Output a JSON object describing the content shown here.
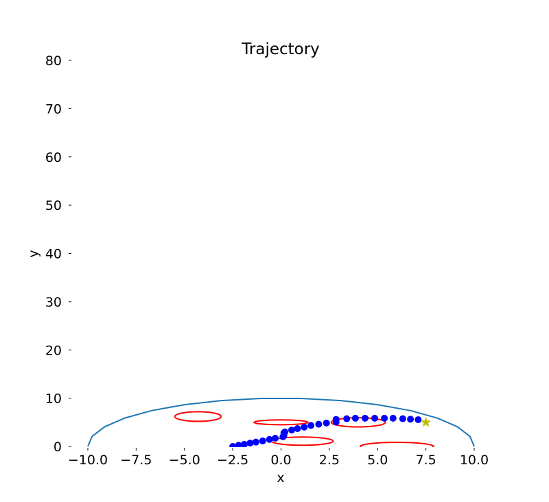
{
  "chart_data": {
    "type": "scatter",
    "title": "Trajectory",
    "xlabel": "x",
    "ylabel": "y",
    "xlim": [
      -10,
      10
    ],
    "ylim": [
      0,
      80
    ],
    "x_ticks": [
      "−10.0",
      "−7.5",
      "−5.0",
      "−2.5",
      "0.0",
      "2.5",
      "5.0",
      "7.5",
      "10.0"
    ],
    "y_ticks": [
      "0",
      "10",
      "20",
      "30",
      "40",
      "50",
      "60",
      "70",
      "80"
    ],
    "x_tick_values": [
      -10,
      -7.5,
      -5,
      -2.5,
      0,
      2.5,
      5,
      7.5,
      10
    ],
    "y_tick_values": [
      0,
      10,
      20,
      30,
      40,
      50,
      60,
      70,
      80
    ],
    "grid": false,
    "boundary": {
      "color": "#1f77b4",
      "radius": 10
    },
    "trajectory": {
      "color": "#0000ff",
      "points": [
        [
          -2.5,
          0.0
        ],
        [
          -2.2,
          0.25
        ],
        [
          -1.9,
          0.45
        ],
        [
          -1.6,
          0.7
        ],
        [
          -1.3,
          0.9
        ],
        [
          -0.95,
          1.15
        ],
        [
          -0.6,
          1.45
        ],
        [
          -0.3,
          1.7
        ],
        [
          0.1,
          2.0
        ],
        [
          0.15,
          2.3
        ],
        [
          0.15,
          2.8
        ],
        [
          0.2,
          3.0
        ],
        [
          0.55,
          3.4
        ],
        [
          0.85,
          3.7
        ],
        [
          1.2,
          4.0
        ],
        [
          1.55,
          4.35
        ],
        [
          1.95,
          4.6
        ],
        [
          2.35,
          4.85
        ],
        [
          2.85,
          5.05
        ],
        [
          2.85,
          5.6
        ],
        [
          3.4,
          5.75
        ],
        [
          3.85,
          5.85
        ],
        [
          4.35,
          5.85
        ],
        [
          4.85,
          5.85
        ],
        [
          5.35,
          5.85
        ],
        [
          5.8,
          5.85
        ],
        [
          6.3,
          5.75
        ],
        [
          6.7,
          5.65
        ],
        [
          7.1,
          5.55
        ]
      ]
    },
    "goal": {
      "x": 7.5,
      "y": 5.0,
      "color": "#bfbf00"
    },
    "obstacles": {
      "color": "#ff0000",
      "ellipses": [
        {
          "cx": -4.3,
          "cy": 6.2,
          "rx": 1.2,
          "ry": 1.0
        },
        {
          "cx": 0.0,
          "cy": 5.0,
          "rx": 1.4,
          "ry": 0.5
        },
        {
          "cx": 1.1,
          "cy": 1.1,
          "rx": 1.6,
          "ry": 0.85
        },
        {
          "cx": 4.0,
          "cy": 5.0,
          "rx": 1.4,
          "ry": 0.95
        },
        {
          "cx": 6.0,
          "cy": 0.0,
          "rx": 1.9,
          "ry": 0.85
        }
      ]
    }
  }
}
